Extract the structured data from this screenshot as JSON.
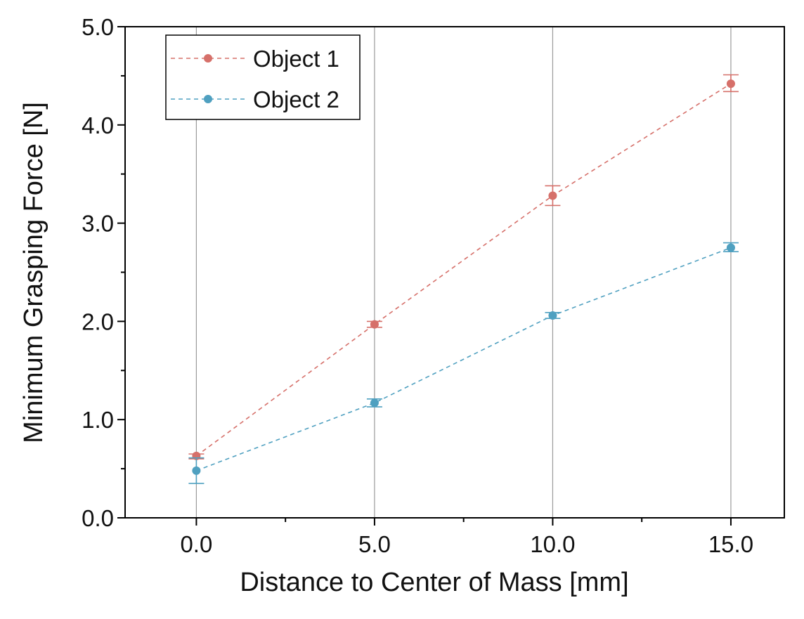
{
  "chart_data": {
    "type": "line",
    "title": "",
    "xlabel": "Distance to Center of Mass [mm]",
    "ylabel": "Minimum Grasping Force [N]",
    "xlim": [
      -2.0,
      16.5
    ],
    "ylim": [
      0.0,
      5.0
    ],
    "x": [
      0.0,
      5.0,
      10.0,
      15.0
    ],
    "x_tick_labels": [
      "0.0",
      "5.0",
      "10.0",
      "15.0"
    ],
    "x_ticks": [
      0.0,
      5.0,
      10.0,
      15.0
    ],
    "x_minor_ticks": [
      2.5,
      7.5,
      12.5
    ],
    "y_tick_labels": [
      "0.0",
      "1.0",
      "2.0",
      "3.0",
      "4.0",
      "5.0"
    ],
    "y_ticks": [
      0.0,
      1.0,
      2.0,
      3.0,
      4.0,
      5.0
    ],
    "y_minor_ticks": [
      0.5,
      1.5,
      2.5,
      3.5,
      4.5
    ],
    "grid": "vertical",
    "legend_position": "top-left",
    "series": [
      {
        "name": "Object 1",
        "color": "#d6706a",
        "values": [
          0.63,
          1.97,
          3.28,
          4.42
        ],
        "error_low": [
          0.6,
          1.94,
          3.18,
          4.34
        ],
        "error_high": [
          0.65,
          2.0,
          3.38,
          4.51
        ]
      },
      {
        "name": "Object 2",
        "color": "#4fa0c0",
        "values": [
          0.48,
          1.17,
          2.06,
          2.75
        ],
        "error_low": [
          0.35,
          1.13,
          2.03,
          2.71
        ],
        "error_high": [
          0.61,
          1.21,
          2.09,
          2.8
        ]
      }
    ]
  }
}
